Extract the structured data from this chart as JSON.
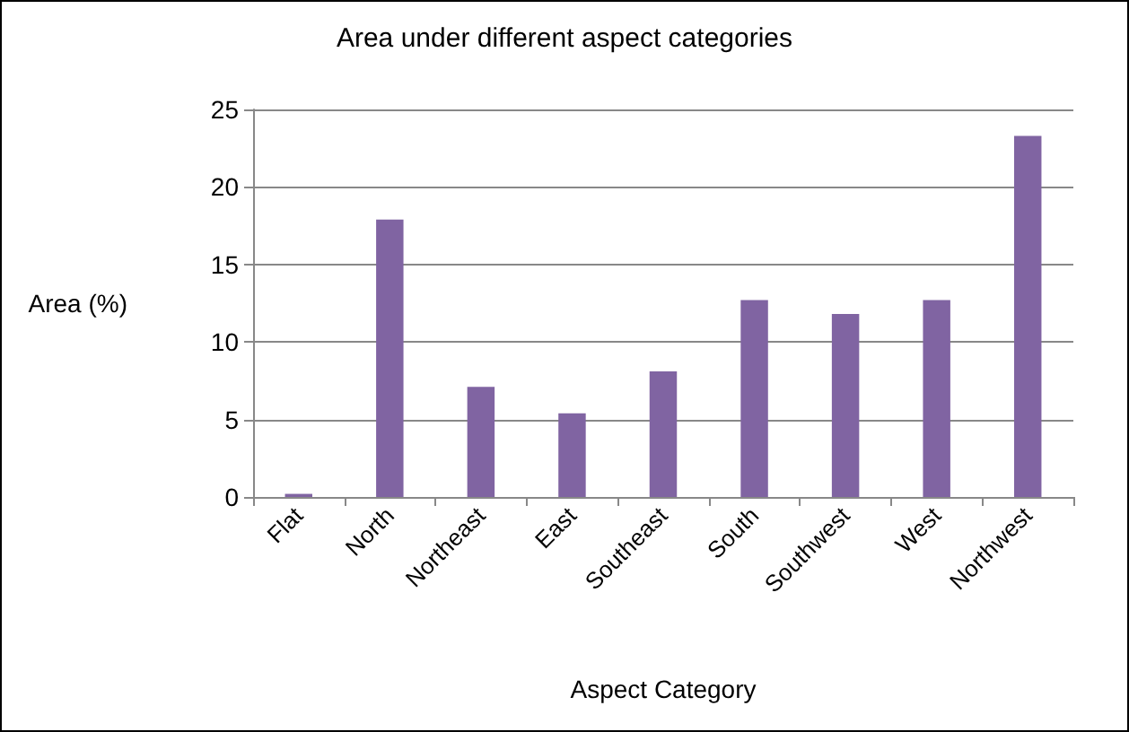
{
  "chart_data": {
    "type": "bar",
    "title": "Area under different aspect categories",
    "xlabel": "Aspect Category",
    "ylabel": "Area (%)",
    "categories": [
      "Flat",
      "North",
      "Northeast",
      "East",
      "Southeast",
      "South",
      "Southwest",
      "West",
      "Northwest"
    ],
    "values": [
      0.2,
      17.9,
      7.1,
      5.4,
      8.1,
      12.7,
      11.8,
      12.7,
      23.3
    ],
    "color": "#8064a2",
    "ylim": [
      0,
      25
    ],
    "yticks": [
      0,
      5,
      10,
      15,
      20,
      25
    ],
    "grid": "y"
  }
}
